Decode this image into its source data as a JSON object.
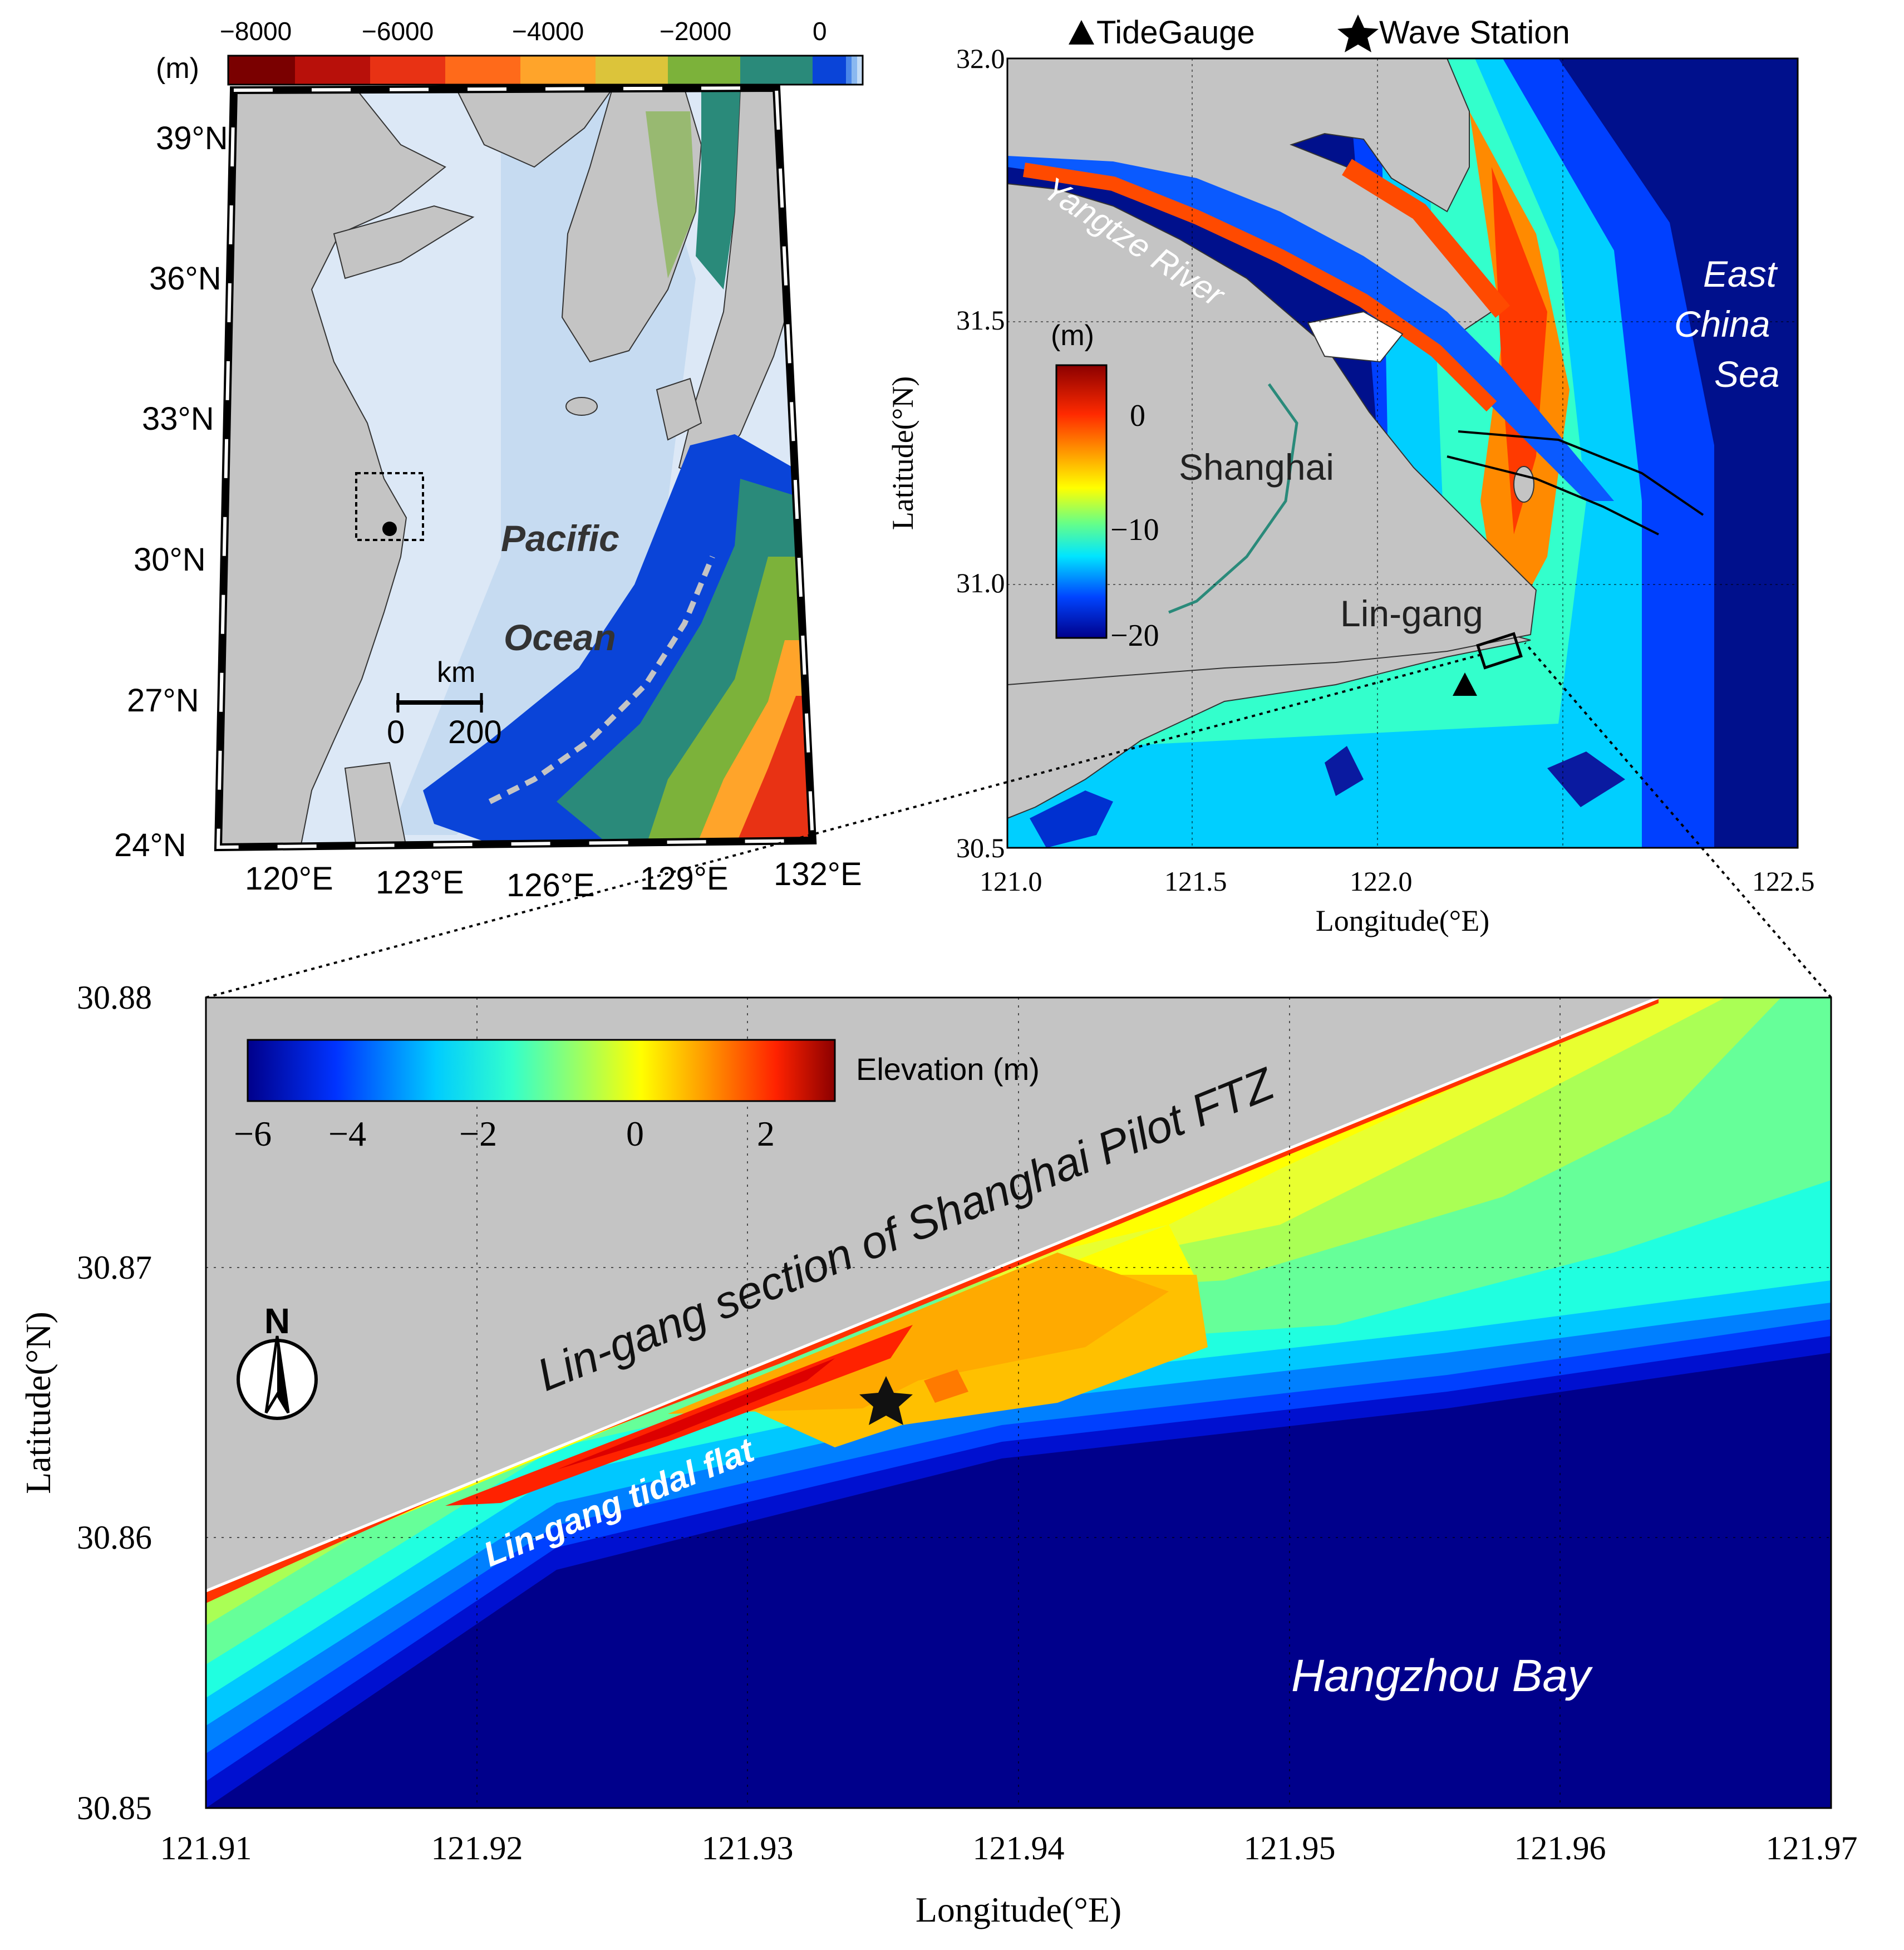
{
  "panel_a": {
    "colorbar": {
      "unit": "(m)",
      "ticks": [
        "−8000",
        "−6000",
        "−4000",
        "−2000",
        "0"
      ],
      "colors": [
        "#7a0000",
        "#b8100a",
        "#e83214",
        "#ff6a1a",
        "#ffa42a",
        "#dcc43a",
        "#7cb23a",
        "#2a8a7a",
        "#0a44d8",
        "#9fc6ee"
      ]
    },
    "lat_labels": [
      "39°N",
      "36°N",
      "33°N",
      "30°N",
      "27°N",
      "24°N"
    ],
    "lon_labels": [
      "120°E",
      "123°E",
      "126°E",
      "129°E",
      "132°E"
    ],
    "ocean_label_1": "Pacific",
    "ocean_label_2": "Ocean",
    "scale_unit": "km",
    "scale_0": "0",
    "scale_200": "200"
  },
  "panel_b": {
    "legend_tide": "TideGauge",
    "legend_wave": "Wave Station",
    "lat_ticks": [
      "32.0",
      "31.5",
      "31.0",
      "30.5"
    ],
    "lon_ticks": [
      "121.0",
      "121.5",
      "122.0",
      "122.5"
    ],
    "ylabel": "Latitude(°N)",
    "xlabel": "Longitude(°E)",
    "colorbar_unit": "(m)",
    "colorbar_ticks": [
      "0",
      "−10",
      "−20"
    ],
    "label_river": "Yangtze River",
    "label_city": "Shanghai",
    "label_site": "Lin-gang",
    "label_sea_1": "East",
    "label_sea_2": "China",
    "label_sea_3": "Sea"
  },
  "panel_c": {
    "lat_ticks": [
      "30.88",
      "30.87",
      "30.86",
      "30.85"
    ],
    "lon_ticks": [
      "121.91",
      "121.92",
      "121.93",
      "121.94",
      "121.95",
      "121.96",
      "121.97"
    ],
    "ylabel": "Latitude(°N)",
    "xlabel": "Longitude(°E)",
    "colorbar_label": "Elevation (m)",
    "colorbar_ticks": [
      "−6",
      "−4",
      "−2",
      "0",
      "2"
    ],
    "label_ftz": "Lin-gang section of Shanghai Pilot FTZ",
    "label_flat": "Lin-gang tidal flat",
    "label_bay": "Hangzhou Bay",
    "north_label": "N"
  }
}
